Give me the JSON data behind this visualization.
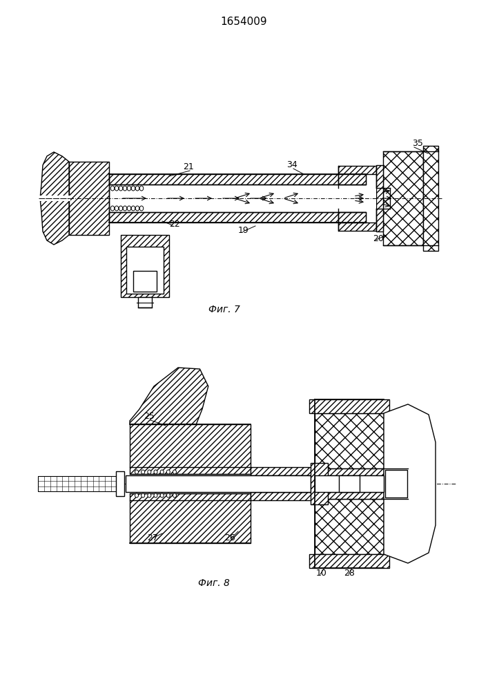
{
  "title": "1654009",
  "fig1_caption": "Фиг. 7",
  "fig2_caption": "Фиг. 8",
  "bg_color": "#ffffff",
  "line_color": "#000000",
  "fig_width": 7.07,
  "fig_height": 10.0,
  "dpi": 100
}
